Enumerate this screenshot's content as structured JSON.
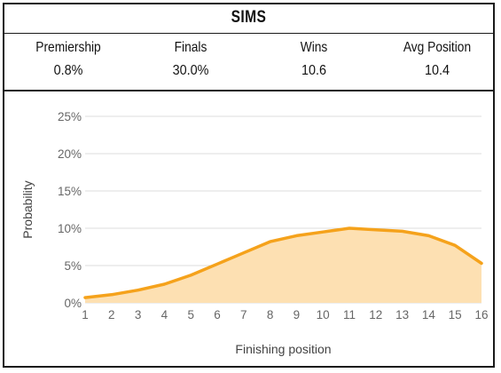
{
  "header": {
    "team": "SIMS",
    "stats": [
      {
        "label": "Premiership",
        "value": "0.8%"
      },
      {
        "label": "Finals",
        "value": "30.0%"
      },
      {
        "label": "Wins",
        "value": "10.6"
      },
      {
        "label": "Avg Position",
        "value": "10.4"
      }
    ]
  },
  "colors": {
    "line": "#f5a21b",
    "fill": "#fde0b2",
    "grid": "#dcdcdc"
  },
  "chart_data": {
    "type": "area",
    "xlabel": "Finishing position",
    "ylabel": "Probability",
    "x": [
      1,
      2,
      3,
      4,
      5,
      6,
      7,
      8,
      9,
      10,
      11,
      12,
      13,
      14,
      15,
      16
    ],
    "values": [
      0.7,
      1.1,
      1.7,
      2.5,
      3.7,
      5.2,
      6.7,
      8.2,
      9.0,
      9.5,
      10.0,
      9.8,
      9.6,
      9.0,
      7.7,
      5.3
    ],
    "ylim": [
      0,
      25
    ],
    "yticks": [
      0,
      5,
      10,
      15,
      20,
      25
    ],
    "ytick_labels": [
      "0%",
      "5%",
      "10%",
      "15%",
      "20%",
      "25%"
    ],
    "grid": true,
    "legend": "none"
  }
}
